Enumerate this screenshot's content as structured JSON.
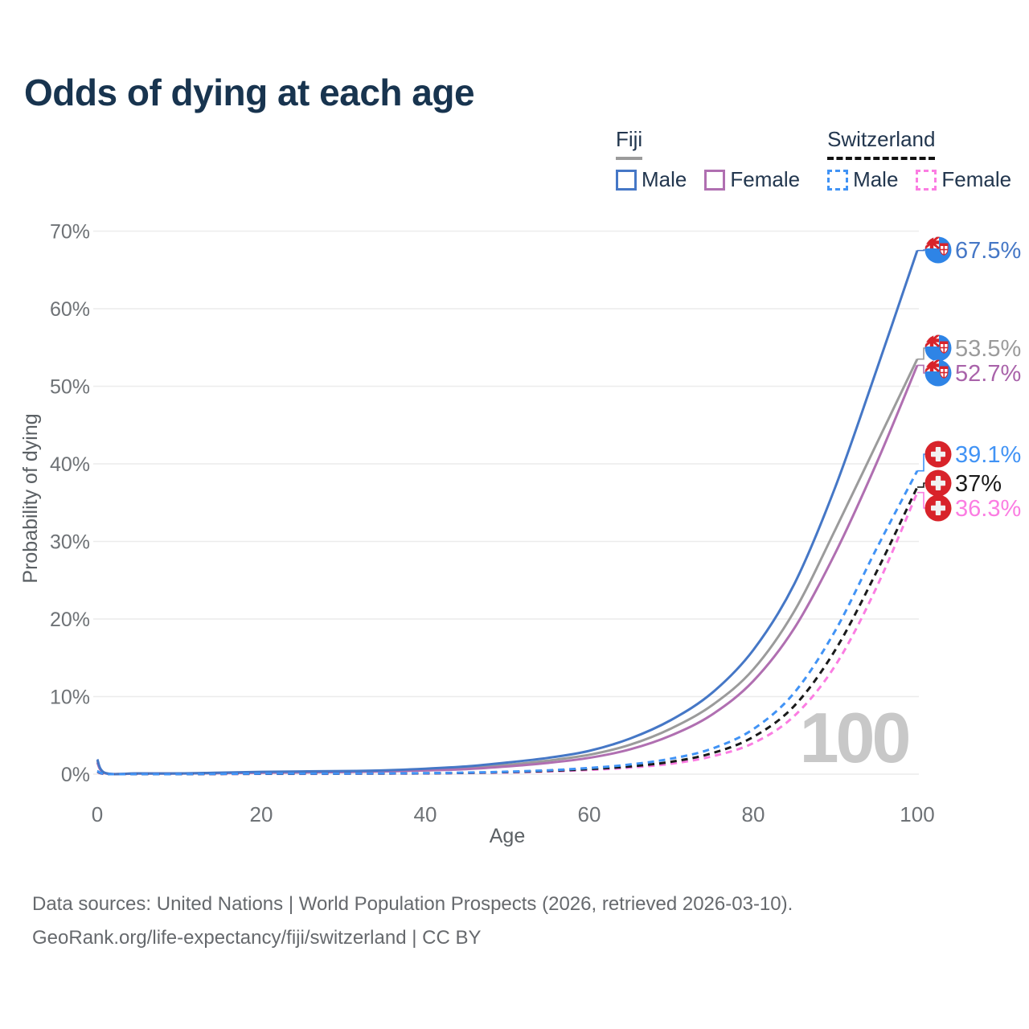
{
  "title": "Odds of dying at each age",
  "colors": {
    "title_text": "#18344f",
    "legend_text": "#22364e",
    "tick_text": "#6e7276",
    "axis_title_text": "#5b6064",
    "grid": "#ececec",
    "watermark": "#c8c8c8",
    "footer_text": "#66696d",
    "fiji_flag_blue": "#2e84e6",
    "swiss_flag_red": "#d8232a"
  },
  "legend": {
    "groups": [
      {
        "name": "Fiji",
        "underline_color": "#9b9b9b",
        "underline_style": "solid",
        "items": [
          {
            "label": "Male",
            "color": "#4577c6",
            "dash": false
          },
          {
            "label": "Female",
            "color": "#b06fb1",
            "dash": false
          }
        ]
      },
      {
        "name": "Switzerland",
        "underline_color": "#111111",
        "underline_style": "dashed",
        "items": [
          {
            "label": "Male",
            "color": "#4193f5",
            "dash": true
          },
          {
            "label": "Female",
            "color": "#fb7de2",
            "dash": true
          }
        ]
      }
    ]
  },
  "chart_data": {
    "type": "line",
    "title": "Odds of dying at each age",
    "xlabel": "Age",
    "ylabel": "Probability of dying",
    "xlim": [
      0,
      100
    ],
    "ylim": [
      0,
      70
    ],
    "x_ticks": [
      0,
      20,
      40,
      60,
      80,
      100
    ],
    "y_ticks": [
      "0%",
      "10%",
      "20%",
      "30%",
      "40%",
      "50%",
      "60%",
      "70%"
    ],
    "grid": "horizontal",
    "legend_position": "top-right",
    "watermark": "100",
    "x": [
      0,
      1,
      5,
      10,
      15,
      20,
      25,
      30,
      35,
      40,
      45,
      50,
      55,
      60,
      65,
      70,
      75,
      80,
      85,
      90,
      95,
      100
    ],
    "series": [
      {
        "name": "Fiji Male",
        "country": "Fiji",
        "sex": "Male",
        "color": "#4577c6",
        "dash": false,
        "flag": "fiji",
        "end_label": "67.5%",
        "end_label_color": "#4577c6",
        "values": [
          1.9,
          0.15,
          0.1,
          0.1,
          0.2,
          0.3,
          0.35,
          0.4,
          0.5,
          0.7,
          1.0,
          1.5,
          2.1,
          3.0,
          4.6,
          7.0,
          10.5,
          16.0,
          24.5,
          37.0,
          52.0,
          67.5
        ]
      },
      {
        "name": "Fiji Both sexes",
        "country": "Fiji",
        "sex": "Both",
        "color": "#9b9b9b",
        "dash": false,
        "flag": "fiji",
        "end_label": "53.5%",
        "end_label_color": "#9b9b9b",
        "values": [
          1.7,
          0.13,
          0.09,
          0.09,
          0.16,
          0.24,
          0.28,
          0.33,
          0.42,
          0.58,
          0.8,
          1.2,
          1.75,
          2.5,
          3.8,
          5.9,
          8.9,
          13.5,
          21.0,
          31.5,
          42.5,
          53.5
        ]
      },
      {
        "name": "Fiji Female",
        "country": "Fiji",
        "sex": "Female",
        "color": "#b06fb1",
        "dash": false,
        "flag": "fiji",
        "end_label": "52.7%",
        "end_label_color": "#a963aa",
        "values": [
          1.5,
          0.11,
          0.08,
          0.08,
          0.13,
          0.18,
          0.22,
          0.27,
          0.35,
          0.48,
          0.65,
          1.0,
          1.45,
          2.1,
          3.2,
          5.0,
          7.7,
          12.0,
          18.8,
          28.5,
          40.0,
          52.7
        ]
      },
      {
        "name": "Switzerland Male",
        "country": "Switzerland",
        "sex": "Male",
        "color": "#4193f5",
        "dash": true,
        "flag": "switzerland",
        "end_label": "39.1%",
        "end_label_color": "#4193f5",
        "values": [
          0.4,
          0.03,
          0.01,
          0.01,
          0.04,
          0.07,
          0.07,
          0.08,
          0.1,
          0.13,
          0.2,
          0.32,
          0.5,
          0.8,
          1.25,
          2.0,
          3.3,
          5.8,
          10.5,
          18.5,
          29.0,
          39.1
        ]
      },
      {
        "name": "Switzerland Both sexes",
        "country": "Switzerland",
        "sex": "Both",
        "color": "#1a1a1a",
        "dash": true,
        "flag": "switzerland",
        "end_label": "37%",
        "end_label_color": "#1a1a1a",
        "values": [
          0.35,
          0.03,
          0.01,
          0.01,
          0.03,
          0.05,
          0.06,
          0.07,
          0.08,
          0.11,
          0.17,
          0.27,
          0.42,
          0.65,
          1.0,
          1.6,
          2.7,
          4.8,
          8.8,
          16.0,
          26.0,
          37.0
        ]
      },
      {
        "name": "Switzerland Female",
        "country": "Switzerland",
        "sex": "Female",
        "color": "#fb7de2",
        "dash": true,
        "flag": "switzerland",
        "end_label": "36.3%",
        "end_label_color": "#fb7de2",
        "values": [
          0.3,
          0.02,
          0.01,
          0.01,
          0.02,
          0.04,
          0.04,
          0.05,
          0.07,
          0.09,
          0.14,
          0.22,
          0.35,
          0.55,
          0.85,
          1.35,
          2.3,
          4.0,
          7.5,
          14.0,
          24.0,
          36.3
        ]
      }
    ]
  },
  "footer": {
    "line1": "Data sources: United Nations | World Population Prospects (2026, retrieved 2026-03-10).",
    "line2": "GeoRank.org/life-expectancy/fiji/switzerland | CC BY"
  }
}
